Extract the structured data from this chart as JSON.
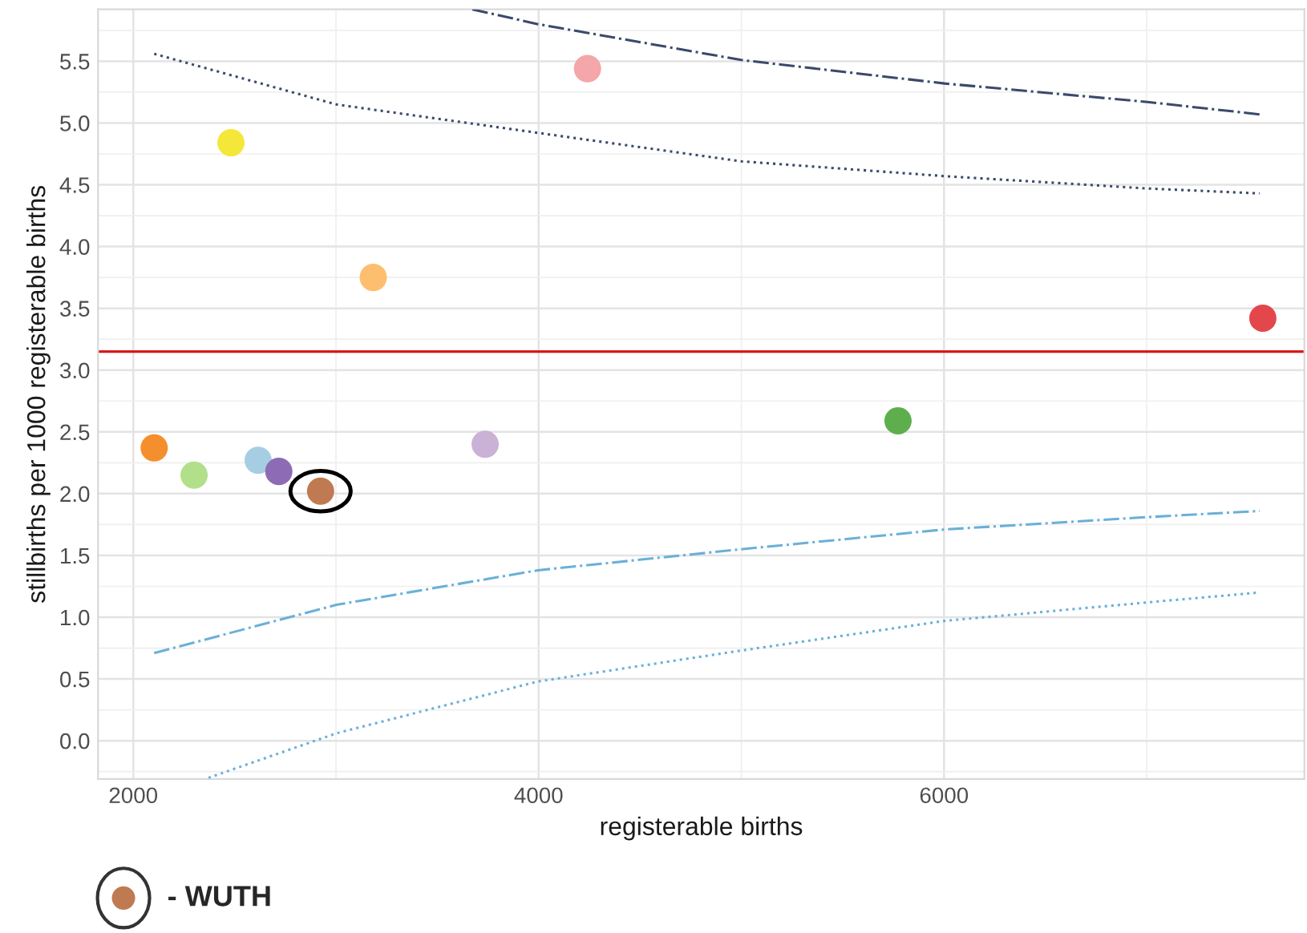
{
  "chart_data": {
    "type": "scatter",
    "xlabel": "registerable births",
    "ylabel": "stillbirths per 1000 registerable births",
    "xlim": [
      1826,
      7778
    ],
    "ylim": [
      -0.31,
      5.92
    ],
    "xticks": [
      2000,
      4000,
      6000
    ],
    "yticks": [
      {
        "value": 0,
        "label": "0.0"
      },
      0.5,
      {
        "value": 1,
        "label": "1.0"
      },
      1.5,
      {
        "value": 2,
        "label": "2.0"
      },
      2.5,
      {
        "value": 3,
        "label": "3.0"
      },
      3.5,
      {
        "value": 4,
        "label": "4.0"
      },
      4.5,
      {
        "value": 5,
        "label": "5.0"
      },
      5.5
    ],
    "grid": true,
    "series": [
      {
        "marker": "circle",
        "x": [
          2103,
          2300,
          2482,
          2616,
          2718,
          2924,
          3184,
          3736,
          4241,
          5773,
          7573
        ],
        "values": [
          2.37,
          2.15,
          4.84,
          2.27,
          2.18,
          2.02,
          3.75,
          2.4,
          5.44,
          2.59,
          3.42
        ],
        "colors": [
          "#f58f2e",
          "#b2df8a",
          "#f5e73a",
          "#a6cee3",
          "#8e6bb5",
          "#c07a52",
          "#fdbf6f",
          "#cab2d6",
          "#f4a6a8",
          "#5fae4e",
          "#e4474b"
        ]
      },
      {
        "type": "line",
        "line_style": "dotted",
        "color": "#3a4a6a",
        "x": [
          2103,
          3002,
          3997,
          4999,
          6002,
          7004,
          7557
        ],
        "values": [
          5.56,
          5.15,
          4.92,
          4.69,
          4.57,
          4.47,
          4.43
        ]
      },
      {
        "type": "line",
        "line_style": "dashdot",
        "color": "#3a4a6a",
        "x": [
          3673,
          3997,
          4999,
          6002,
          7004,
          7557
        ],
        "values": [
          5.92,
          5.8,
          5.51,
          5.32,
          5.17,
          5.07
        ]
      },
      {
        "type": "line",
        "line_style": "dashdot",
        "color": "#6ab0d8",
        "x": [
          2103,
          3002,
          3997,
          4999,
          6002,
          7004,
          7557
        ],
        "values": [
          0.71,
          1.1,
          1.38,
          1.55,
          1.71,
          1.81,
          1.86
        ]
      },
      {
        "type": "line",
        "line_style": "dotted",
        "color": "#6ab0d8",
        "x": [
          2371,
          3002,
          3997,
          4999,
          6002,
          7004,
          7557
        ],
        "values": [
          -0.3,
          0.06,
          0.48,
          0.73,
          0.97,
          1.12,
          1.2
        ]
      }
    ],
    "ref_lines": [
      {
        "axis": "y",
        "value": 3.15,
        "color": "#d7191c"
      }
    ],
    "annotations": [
      "- WUTH"
    ]
  }
}
